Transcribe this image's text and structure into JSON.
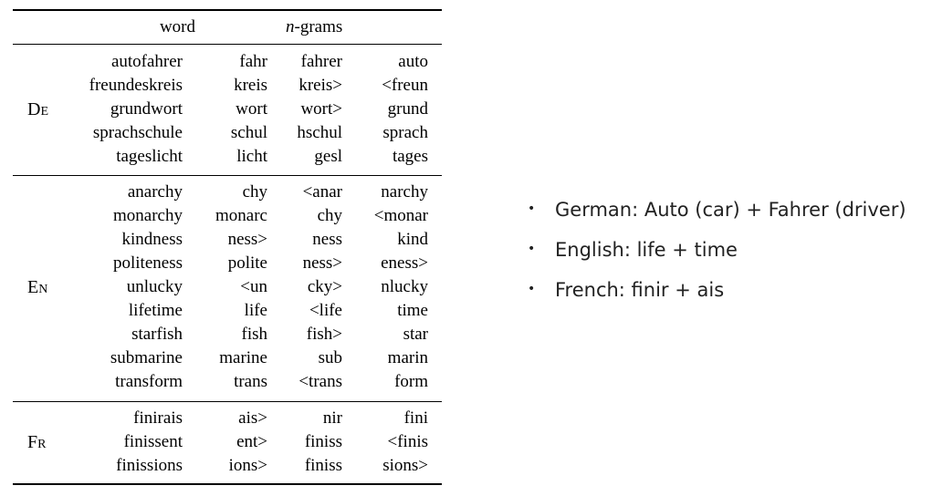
{
  "table": {
    "header": {
      "word": "word",
      "ngram_var": "n",
      "ngram_suffix": "-grams"
    },
    "groups": [
      {
        "lang": "De",
        "rows": [
          [
            "autofahrer",
            "fahr",
            "fahrer",
            "auto"
          ],
          [
            "freundeskreis",
            "kreis",
            "kreis>",
            "<freun"
          ],
          [
            "grundwort",
            "wort",
            "wort>",
            "grund"
          ],
          [
            "sprachschule",
            "schul",
            "hschul",
            "sprach"
          ],
          [
            "tageslicht",
            "licht",
            "gesl",
            "tages"
          ]
        ]
      },
      {
        "lang": "En",
        "rows": [
          [
            "anarchy",
            "chy",
            "<anar",
            "narchy"
          ],
          [
            "monarchy",
            "monarc",
            "chy",
            "<monar"
          ],
          [
            "kindness",
            "ness>",
            "ness",
            "kind"
          ],
          [
            "politeness",
            "polite",
            "ness>",
            "eness>"
          ],
          [
            "unlucky",
            "<un",
            "cky>",
            "nlucky"
          ],
          [
            "lifetime",
            "life",
            "<life",
            "time"
          ],
          [
            "starfish",
            "fish",
            "fish>",
            "star"
          ],
          [
            "submarine",
            "marine",
            "sub",
            "marin"
          ],
          [
            "transform",
            "trans",
            "<trans",
            "form"
          ]
        ]
      },
      {
        "lang": "Fr",
        "rows": [
          [
            "finirais",
            "ais>",
            "nir",
            "fini"
          ],
          [
            "finissent",
            "ent>",
            "finiss",
            "<finis"
          ],
          [
            "finissions",
            "ions>",
            "finiss",
            "sions>"
          ]
        ]
      }
    ]
  },
  "bullets": [
    "German: Auto (car) + Fahrer (driver)",
    "English: life + time",
    "French: finir + ais"
  ]
}
